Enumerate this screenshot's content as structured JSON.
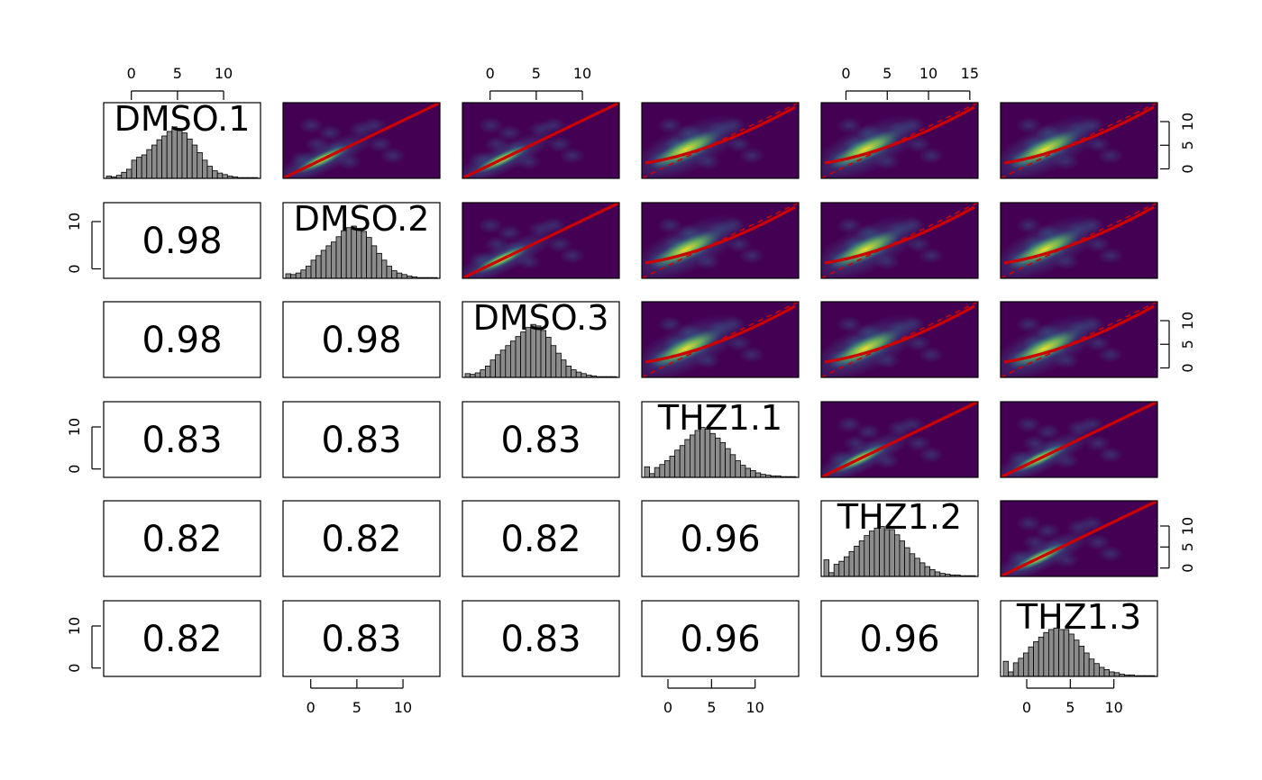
{
  "chart_data": {
    "type": "scatter-matrix",
    "variables": [
      "DMSO.1",
      "DMSO.2",
      "DMSO.3",
      "THZ1.1",
      "THZ1.2",
      "THZ1.3"
    ],
    "correlations": [
      {
        "row": "DMSO.2",
        "col": "DMSO.1",
        "value": "0.98"
      },
      {
        "row": "DMSO.3",
        "col": "DMSO.1",
        "value": "0.98"
      },
      {
        "row": "DMSO.3",
        "col": "DMSO.2",
        "value": "0.98"
      },
      {
        "row": "THZ1.1",
        "col": "DMSO.1",
        "value": "0.83"
      },
      {
        "row": "THZ1.1",
        "col": "DMSO.2",
        "value": "0.83"
      },
      {
        "row": "THZ1.1",
        "col": "DMSO.3",
        "value": "0.83"
      },
      {
        "row": "THZ1.2",
        "col": "DMSO.1",
        "value": "0.82"
      },
      {
        "row": "THZ1.2",
        "col": "DMSO.2",
        "value": "0.82"
      },
      {
        "row": "THZ1.2",
        "col": "DMSO.3",
        "value": "0.82"
      },
      {
        "row": "THZ1.2",
        "col": "THZ1.1",
        "value": "0.96"
      },
      {
        "row": "THZ1.3",
        "col": "DMSO.1",
        "value": "0.82"
      },
      {
        "row": "THZ1.3",
        "col": "DMSO.2",
        "value": "0.83"
      },
      {
        "row": "THZ1.3",
        "col": "DMSO.3",
        "value": "0.83"
      },
      {
        "row": "THZ1.3",
        "col": "THZ1.1",
        "value": "0.96"
      },
      {
        "row": "THZ1.3",
        "col": "THZ1.2",
        "value": "0.96"
      }
    ],
    "histograms": {
      "DMSO.1": [
        0.03,
        0.02,
        0.04,
        0.08,
        0.12,
        0.24,
        0.28,
        0.31,
        0.38,
        0.44,
        0.51,
        0.56,
        0.62,
        0.68,
        0.66,
        0.6,
        0.52,
        0.44,
        0.34,
        0.24,
        0.16,
        0.1,
        0.07,
        0.05,
        0.03,
        0.02,
        0.01,
        0.01,
        0.01,
        0.01
      ],
      "DMSO.2": [
        0.06,
        0.05,
        0.07,
        0.11,
        0.16,
        0.24,
        0.3,
        0.37,
        0.43,
        0.48,
        0.55,
        0.63,
        0.67,
        0.69,
        0.66,
        0.62,
        0.54,
        0.43,
        0.33,
        0.24,
        0.16,
        0.1,
        0.07,
        0.05,
        0.03,
        0.02,
        0.01,
        0.01,
        0.01,
        0.01
      ],
      "DMSO.3": [
        0.05,
        0.04,
        0.06,
        0.1,
        0.15,
        0.23,
        0.3,
        0.36,
        0.42,
        0.48,
        0.54,
        0.6,
        0.66,
        0.7,
        0.68,
        0.62,
        0.53,
        0.42,
        0.32,
        0.23,
        0.15,
        0.1,
        0.07,
        0.05,
        0.03,
        0.02,
        0.01,
        0.01,
        0.01,
        0.01
      ],
      "THZ1.1": [
        0.14,
        0.05,
        0.13,
        0.17,
        0.22,
        0.28,
        0.36,
        0.42,
        0.5,
        0.56,
        0.62,
        0.66,
        0.64,
        0.58,
        0.52,
        0.46,
        0.38,
        0.3,
        0.22,
        0.16,
        0.12,
        0.09,
        0.06,
        0.04,
        0.03,
        0.02,
        0.02,
        0.01,
        0.01,
        0.01
      ],
      "THZ1.2": [
        0.22,
        0.05,
        0.16,
        0.2,
        0.26,
        0.33,
        0.4,
        0.47,
        0.54,
        0.6,
        0.64,
        0.66,
        0.62,
        0.62,
        0.55,
        0.47,
        0.38,
        0.3,
        0.24,
        0.18,
        0.13,
        0.09,
        0.06,
        0.04,
        0.03,
        0.02,
        0.02,
        0.01,
        0.01,
        0.01
      ],
      "THZ1.3": [
        0.2,
        0.06,
        0.18,
        0.24,
        0.31,
        0.39,
        0.46,
        0.52,
        0.58,
        0.62,
        0.64,
        0.62,
        0.62,
        0.56,
        0.48,
        0.4,
        0.31,
        0.23,
        0.17,
        0.12,
        0.09,
        0.06,
        0.05,
        0.03,
        0.02,
        0.02,
        0.01,
        0.01,
        0.01,
        0.01
      ]
    },
    "scatter_panels": [
      {
        "row": "DMSO.1",
        "col": "DMSO.2",
        "loess": "linear"
      },
      {
        "row": "DMSO.1",
        "col": "DMSO.3",
        "loess": "linear"
      },
      {
        "row": "DMSO.1",
        "col": "THZ1.1",
        "loess": "curved"
      },
      {
        "row": "DMSO.1",
        "col": "THZ1.2",
        "loess": "curved"
      },
      {
        "row": "DMSO.1",
        "col": "THZ1.3",
        "loess": "curved"
      },
      {
        "row": "DMSO.2",
        "col": "DMSO.3",
        "loess": "linear"
      },
      {
        "row": "DMSO.2",
        "col": "THZ1.1",
        "loess": "curved"
      },
      {
        "row": "DMSO.2",
        "col": "THZ1.2",
        "loess": "curved"
      },
      {
        "row": "DMSO.2",
        "col": "THZ1.3",
        "loess": "curved"
      },
      {
        "row": "DMSO.3",
        "col": "THZ1.1",
        "loess": "curved"
      },
      {
        "row": "DMSO.3",
        "col": "THZ1.2",
        "loess": "curved"
      },
      {
        "row": "DMSO.3",
        "col": "THZ1.3",
        "loess": "curved"
      },
      {
        "row": "THZ1.1",
        "col": "THZ1.2",
        "loess": "linear"
      },
      {
        "row": "THZ1.1",
        "col": "THZ1.3",
        "loess": "linear"
      },
      {
        "row": "THZ1.2",
        "col": "THZ1.3",
        "loess": "linear"
      }
    ],
    "axes": {
      "top": [
        {
          "col": "DMSO.1",
          "xlim": [
            -3,
            14
          ],
          "ticks": [
            0,
            5,
            10
          ]
        },
        {
          "col": "DMSO.3",
          "xlim": [
            -3,
            14
          ],
          "ticks": [
            0,
            5,
            10
          ]
        },
        {
          "col": "THZ1.2",
          "xlim": [
            -3,
            16
          ],
          "ticks": [
            0,
            5,
            10,
            15
          ]
        }
      ],
      "bottom": [
        {
          "col": "DMSO.2",
          "xlim": [
            -3,
            14
          ],
          "ticks": [
            0,
            5,
            10
          ]
        },
        {
          "col": "THZ1.1",
          "xlim": [
            -3,
            15
          ],
          "ticks": [
            0,
            5,
            10
          ]
        },
        {
          "col": "THZ1.3",
          "xlim": [
            -3,
            15
          ],
          "ticks": [
            0,
            5,
            10
          ]
        }
      ],
      "left": [
        {
          "row": "DMSO.2",
          "ylim": [
            -2,
            14
          ],
          "ticks": [
            0,
            10
          ]
        },
        {
          "row": "THZ1.1",
          "ylim": [
            -2,
            16
          ],
          "ticks": [
            0,
            10
          ]
        },
        {
          "row": "THZ1.3",
          "ylim": [
            -2,
            16
          ],
          "ticks": [
            0,
            10
          ]
        }
      ],
      "right": [
        {
          "row": "DMSO.1",
          "ylim": [
            -2,
            14
          ],
          "ticks": [
            0,
            5,
            10
          ]
        },
        {
          "row": "DMSO.3",
          "ylim": [
            -2,
            14
          ],
          "ticks": [
            0,
            5,
            10
          ]
        },
        {
          "row": "THZ1.2",
          "ylim": [
            -2,
            16
          ],
          "ticks": [
            0,
            5,
            10
          ]
        }
      ]
    },
    "colors": {
      "fit_line": "#cc0000",
      "identity_line": "#cc0000",
      "density_low": "#440154",
      "density_mid": "#21908d",
      "density_high": "#fde725",
      "histogram_bar": "#8c8c8c"
    }
  }
}
